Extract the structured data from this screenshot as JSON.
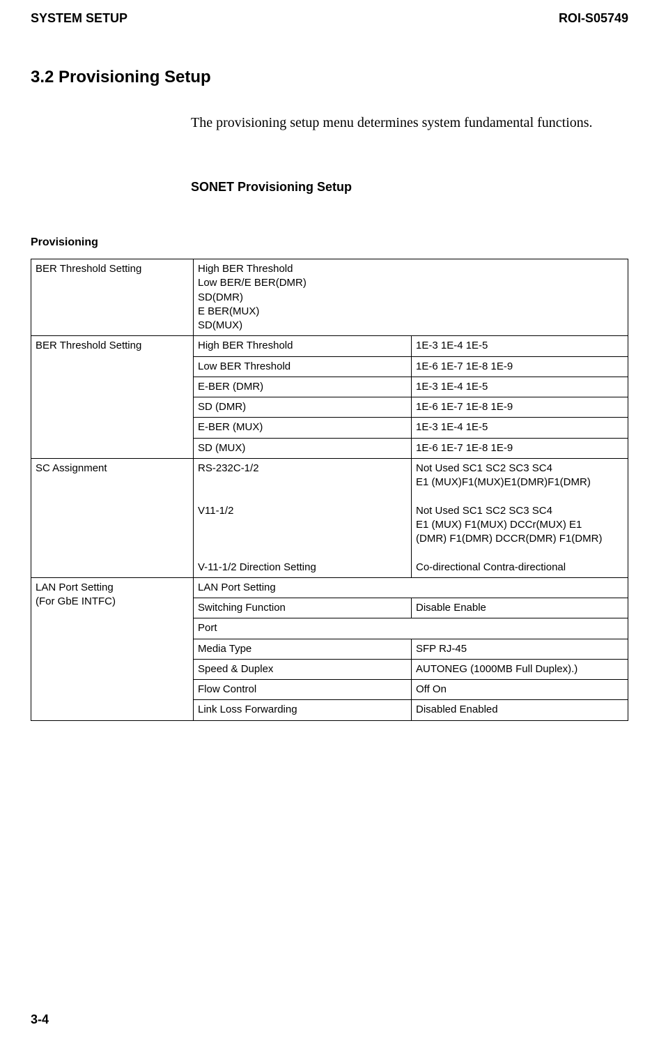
{
  "header": {
    "left": "SYSTEM SETUP",
    "right": "ROI-S05749"
  },
  "section_title": "3.2  Provisioning Setup",
  "body_text": "The provisioning setup menu determines system fundamental functions.",
  "sub_heading": "SONET Provisioning Setup",
  "table_label": "Provisioning",
  "rows": [
    {
      "c1": "BER Threshold Setting",
      "c2": "High BER Threshold\nLow BER/E BER(DMR)\nSD(DMR)\nE BER(MUX)\nSD(MUX)",
      "c3": ""
    },
    {
      "c1": "BER Threshold Setting",
      "c2": "High BER Threshold",
      "c3": "1E-3    1E-4    1E-5"
    },
    {
      "c1": "",
      "c2": "Low BER Threshold",
      "c3": "1E-6    1E-7    1E-8    1E-9"
    },
    {
      "c1": "",
      "c2": "E-BER (DMR)",
      "c3": "1E-3    1E-4    1E-5"
    },
    {
      "c1": "",
      "c2": "SD (DMR)",
      "c3": "1E-6    1E-7    1E-8    1E-9"
    },
    {
      "c1": "",
      "c2": "E-BER (MUX)",
      "c3": "1E-3    1E-4    1E-5"
    },
    {
      "c1": "",
      "c2": "SD (MUX)",
      "c3": "1E-6    1E-7    1E-8    1E-9"
    },
    {
      "c1": "SC Assignment",
      "c2": "RS-232C-1/2\n\n\nV11-1/2\n\n\n\nV-11-1/2 Direction Setting",
      "c3": "Not Used SC1    SC2    SC3    SC4\nE1 (MUX)F1(MUX)E1(DMR)F1(DMR)\n\nNot Used SC1    SC2    SC3    SC4\nE1 (MUX) F1(MUX) DCCr(MUX) E1\n(DMR) F1(DMR) DCCR(DMR) F1(DMR)\n\nCo-directional       Contra-directional"
    },
    {
      "c1": "LAN Port Setting\n(For GbE INTFC)",
      "c2": "LAN Port Setting",
      "c3": ""
    },
    {
      "c1": "",
      "c2": "Switching Function",
      "c3": "Disable         Enable"
    },
    {
      "c1": "",
      "c2": "Port",
      "c3": ""
    },
    {
      "c1": "",
      "c2": "Media Type",
      "c3": "SFP              RJ-45"
    },
    {
      "c1": "",
      "c2": "Speed & Duplex",
      "c3": "AUTONEG (1000MB Full Duplex).)"
    },
    {
      "c1": "",
      "c2": "Flow Control",
      "c3": "Off                On"
    },
    {
      "c1": "",
      "c2": "Link Loss Forwarding",
      "c3": "Disabled        Enabled"
    }
  ],
  "footer": "3-4"
}
